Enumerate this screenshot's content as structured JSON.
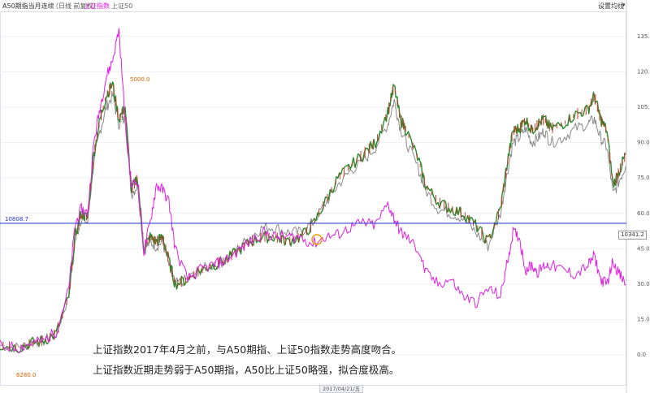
{
  "header": {
    "title": "A50期指当月连续",
    "period": "（日线 前复权）",
    "series_a": "上证指数",
    "series_b": "上证50",
    "settings": "设置均线"
  },
  "annotations": {
    "hline_label": "10808.7",
    "peak_label": "5000.0",
    "low_label": "6280.0",
    "price_tag": "10341.2",
    "date_label": "2017/04/21/五"
  },
  "caption": {
    "line1": "上证指数2017年4月之前，与A50期指、上证50指数走势高度吻合。",
    "line2": "上证指数近期走势弱于A50期指，A50比上证50略强，拟合度极高。"
  },
  "colors": {
    "a50": "#2a8a2a",
    "a50_down": "#c0392b",
    "sh_composite": "#e020e0",
    "sz50": "#8a8a8a",
    "hline": "#2233cc",
    "highlight": "#f0a000"
  },
  "chart_data": {
    "type": "line",
    "y_axis_ticks": [
      "135.0",
      "120.0",
      "105.0",
      "90.0",
      "75.0",
      "60.0",
      "45.0",
      "30.0",
      "15.0",
      "0.0"
    ],
    "ylim": [
      0,
      140
    ],
    "x_index_range": [
      0,
      100
    ],
    "series": [
      {
        "key": "a50",
        "points": [
          [
            0,
            4
          ],
          [
            3,
            3
          ],
          [
            5,
            5
          ],
          [
            7,
            6
          ],
          [
            9,
            9
          ],
          [
            11,
            25
          ],
          [
            12,
            50
          ],
          [
            13,
            60
          ],
          [
            14,
            58
          ],
          [
            15,
            85
          ],
          [
            16,
            100
          ],
          [
            17,
            110
          ],
          [
            18,
            115
          ],
          [
            19,
            100
          ],
          [
            20,
            105
          ],
          [
            21,
            70
          ],
          [
            22,
            75
          ],
          [
            23,
            45
          ],
          [
            24,
            50
          ],
          [
            25,
            48
          ],
          [
            26,
            50
          ],
          [
            27,
            40
          ],
          [
            28,
            30
          ],
          [
            30,
            32
          ],
          [
            32,
            36
          ],
          [
            34,
            38
          ],
          [
            36,
            40
          ],
          [
            38,
            44
          ],
          [
            40,
            48
          ],
          [
            42,
            50
          ],
          [
            44,
            50
          ],
          [
            46,
            48
          ],
          [
            48,
            50
          ],
          [
            50,
            55
          ],
          [
            52,
            65
          ],
          [
            54,
            75
          ],
          [
            56,
            80
          ],
          [
            58,
            85
          ],
          [
            60,
            90
          ],
          [
            62,
            103
          ],
          [
            63,
            114
          ],
          [
            64,
            100
          ],
          [
            65,
            95
          ],
          [
            67,
            82
          ],
          [
            68,
            72
          ],
          [
            70,
            65
          ],
          [
            72,
            62
          ],
          [
            74,
            60
          ],
          [
            76,
            55
          ],
          [
            78,
            48
          ],
          [
            80,
            62
          ],
          [
            81,
            80
          ],
          [
            82,
            95
          ],
          [
            83,
            96
          ],
          [
            84,
            100
          ],
          [
            85,
            95
          ],
          [
            86,
            98
          ],
          [
            87,
            100
          ],
          [
            88,
            96
          ],
          [
            90,
            98
          ],
          [
            92,
            102
          ],
          [
            94,
            104
          ],
          [
            95,
            110
          ],
          [
            96,
            100
          ],
          [
            97,
            95
          ],
          [
            98,
            72
          ],
          [
            99,
            78
          ],
          [
            100,
            85
          ]
        ]
      },
      {
        "key": "sh_composite",
        "points": [
          [
            0,
            4
          ],
          [
            3,
            3
          ],
          [
            5,
            5
          ],
          [
            7,
            6
          ],
          [
            9,
            10
          ],
          [
            11,
            28
          ],
          [
            12,
            55
          ],
          [
            13,
            62
          ],
          [
            14,
            60
          ],
          [
            15,
            90
          ],
          [
            16,
            105
          ],
          [
            17,
            118
          ],
          [
            18,
            125
          ],
          [
            19,
            138
          ],
          [
            20,
            100
          ],
          [
            21,
            72
          ],
          [
            22,
            74
          ],
          [
            23,
            44
          ],
          [
            24,
            56
          ],
          [
            25,
            72
          ],
          [
            26,
            70
          ],
          [
            27,
            65
          ],
          [
            28,
            45
          ],
          [
            30,
            32
          ],
          [
            32,
            36
          ],
          [
            34,
            38
          ],
          [
            36,
            40
          ],
          [
            38,
            44
          ],
          [
            40,
            48
          ],
          [
            42,
            52
          ],
          [
            44,
            50
          ],
          [
            46,
            50
          ],
          [
            48,
            50
          ],
          [
            50,
            47
          ],
          [
            52,
            50
          ],
          [
            54,
            51
          ],
          [
            56,
            54
          ],
          [
            58,
            56
          ],
          [
            60,
            55
          ],
          [
            62,
            64
          ],
          [
            63,
            58
          ],
          [
            64,
            52
          ],
          [
            65,
            50
          ],
          [
            67,
            44
          ],
          [
            68,
            35
          ],
          [
            70,
            30
          ],
          [
            72,
            32
          ],
          [
            74,
            25
          ],
          [
            76,
            22
          ],
          [
            78,
            28
          ],
          [
            80,
            25
          ],
          [
            81,
            38
          ],
          [
            82,
            52
          ],
          [
            83,
            50
          ],
          [
            84,
            36
          ],
          [
            85,
            38
          ],
          [
            86,
            35
          ],
          [
            87,
            38
          ],
          [
            88,
            38
          ],
          [
            90,
            36
          ],
          [
            92,
            34
          ],
          [
            94,
            38
          ],
          [
            95,
            42
          ],
          [
            96,
            32
          ],
          [
            97,
            30
          ],
          [
            98,
            40
          ],
          [
            99,
            34
          ],
          [
            100,
            30
          ]
        ]
      },
      {
        "key": "sz50",
        "points": [
          [
            0,
            4
          ],
          [
            3,
            3
          ],
          [
            5,
            5
          ],
          [
            7,
            6
          ],
          [
            9,
            9
          ],
          [
            11,
            25
          ],
          [
            12,
            48
          ],
          [
            13,
            58
          ],
          [
            14,
            56
          ],
          [
            15,
            82
          ],
          [
            16,
            95
          ],
          [
            17,
            105
          ],
          [
            18,
            110
          ],
          [
            19,
            98
          ],
          [
            20,
            100
          ],
          [
            21,
            68
          ],
          [
            22,
            72
          ],
          [
            23,
            44
          ],
          [
            24,
            48
          ],
          [
            25,
            46
          ],
          [
            26,
            48
          ],
          [
            27,
            38
          ],
          [
            28,
            30
          ],
          [
            30,
            32
          ],
          [
            32,
            36
          ],
          [
            34,
            38
          ],
          [
            36,
            40
          ],
          [
            38,
            45
          ],
          [
            40,
            50
          ],
          [
            42,
            54
          ],
          [
            44,
            54
          ],
          [
            46,
            52
          ],
          [
            48,
            52
          ],
          [
            50,
            56
          ],
          [
            52,
            64
          ],
          [
            54,
            72
          ],
          [
            56,
            78
          ],
          [
            58,
            82
          ],
          [
            60,
            88
          ],
          [
            62,
            98
          ],
          [
            63,
            108
          ],
          [
            64,
            96
          ],
          [
            65,
            90
          ],
          [
            67,
            78
          ],
          [
            68,
            70
          ],
          [
            70,
            62
          ],
          [
            72,
            60
          ],
          [
            74,
            58
          ],
          [
            76,
            52
          ],
          [
            78,
            46
          ],
          [
            80,
            60
          ],
          [
            81,
            76
          ],
          [
            82,
            90
          ],
          [
            83,
            92
          ],
          [
            84,
            96
          ],
          [
            85,
            90
          ],
          [
            86,
            92
          ],
          [
            87,
            95
          ],
          [
            88,
            90
          ],
          [
            90,
            92
          ],
          [
            92,
            96
          ],
          [
            94,
            98
          ],
          [
            95,
            100
          ],
          [
            96,
            92
          ],
          [
            97,
            88
          ],
          [
            98,
            68
          ],
          [
            99,
            74
          ],
          [
            100,
            80
          ]
        ]
      }
    ]
  }
}
